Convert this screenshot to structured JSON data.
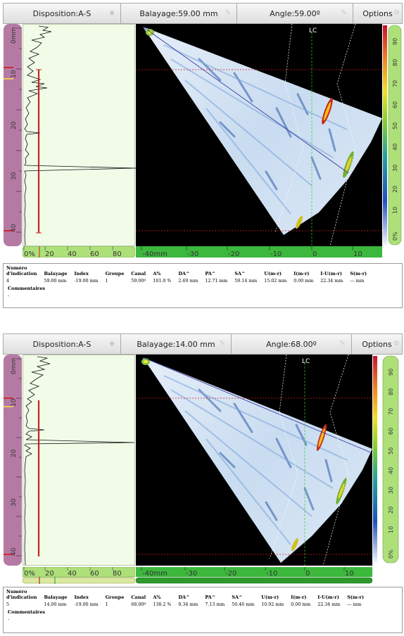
{
  "panels": [
    {
      "toolbar": {
        "disposition": "Disposition:A-S",
        "balayage": "Balayage:59.00 mm",
        "angle": "Angle:59.00º",
        "options": "Options"
      },
      "depth_ticks": [
        "0mm",
        "10",
        "20",
        "30",
        "40"
      ],
      "hscale_ascan": [
        "0%",
        "20",
        "40",
        "60",
        "80"
      ],
      "hscale_sector": [
        "-40mm",
        "-30",
        "-20",
        "-10",
        "0",
        "10"
      ],
      "colorbar_ticks": [
        "90",
        "80",
        "70",
        "60",
        "50",
        "40",
        "30",
        "20",
        "10",
        "0%"
      ],
      "lc_label": "LC",
      "table": {
        "headers": [
          "Numéro d'indication",
          "Balayage",
          "Index",
          "Groupe",
          "Canal",
          "A%",
          "DA^",
          "PA^",
          "SA^",
          "U(m-r)",
          "I(m-r)",
          "I-U(m-r)",
          "S(m-r)"
        ],
        "row": [
          "4",
          "59.00 mm",
          "-19.00 mm",
          "1",
          "59.00º",
          "101.0 %",
          "2.69 mm",
          "12.71 mm",
          "59.14 mm",
          "15.02 mm",
          "0.00 mm",
          "22.34 mm",
          "--- mm"
        ],
        "comment_label": "Commentaires",
        "comment_value": "-"
      }
    },
    {
      "toolbar": {
        "disposition": "Disposition:A-S",
        "balayage": "Balayage:14.00 mm",
        "angle": "Angle:68.00º",
        "options": "Options"
      },
      "depth_ticks": [
        "0mm",
        "10",
        "20",
        "30",
        "40"
      ],
      "hscale_ascan": [
        "0%",
        "20",
        "40",
        "60",
        "80"
      ],
      "hscale_sector": [
        "-40mm",
        "-30",
        "-20",
        "-10",
        "0",
        "10"
      ],
      "colorbar_ticks": [
        "90",
        "80",
        "70",
        "60",
        "50",
        "40",
        "30",
        "20",
        "10",
        "0%"
      ],
      "lc_label": "LC",
      "table": {
        "headers": [
          "Numéro d'indication",
          "Balayage",
          "Index",
          "Groupe",
          "Canal",
          "A%",
          "DA^",
          "PA^",
          "SA^",
          "U(m-r)",
          "I(m-r)",
          "I-U(m-r)",
          "S(m-r)"
        ],
        "row": [
          "5",
          "14.00 mm",
          "-19.00 mm",
          "1",
          "68.00º",
          "138.2 %",
          "9.34 mm",
          "7.13 mm",
          "50.46 mm",
          "10.92 mm",
          "0.00 mm",
          "22.34 mm",
          "--- mm"
        ],
        "comment_label": "Commentaires",
        "comment_value": "-"
      }
    }
  ],
  "colors": {
    "ruler": "#b47aa4",
    "scale_green": "#7fd23a",
    "cursor_red": "#c0281e",
    "ascan_bg": "#f1fbe8",
    "sector_bg": "#000000"
  }
}
